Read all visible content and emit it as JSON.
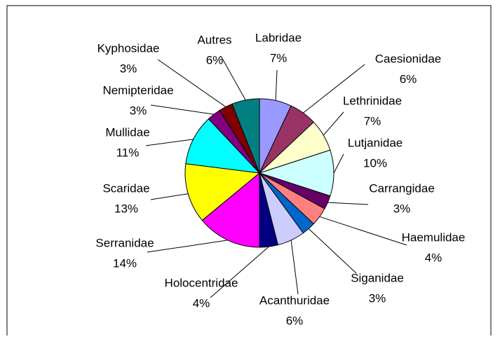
{
  "chart_data": {
    "type": "pie",
    "categories": [
      "Labridae",
      "Caesionidae",
      "Lethrinidae",
      "Lutjanidae",
      "Carrangidae",
      "Haemulidae",
      "Siganidae",
      "Acanthuridae",
      "Holocentridae",
      "Serranidae",
      "Scaridae",
      "Mullidae",
      "Nemipteridae",
      "Kyphosidae",
      "Autres"
    ],
    "values": [
      7,
      6,
      7,
      10,
      3,
      4,
      3,
      6,
      4,
      14,
      13,
      11,
      3,
      3,
      6
    ],
    "value_labels": [
      "7%",
      "6%",
      "7%",
      "10%",
      "3%",
      "4%",
      "3%",
      "6%",
      "4%",
      "14%",
      "13%",
      "11%",
      "3%",
      "3%",
      "6%"
    ],
    "colors": [
      "#9999ff",
      "#993366",
      "#ffffcc",
      "#ccffff",
      "#660066",
      "#ff8080",
      "#0066cc",
      "#ccccff",
      "#000080",
      "#ff00ff",
      "#ffff00",
      "#00ffff",
      "#800080",
      "#800000",
      "#008080"
    ]
  }
}
